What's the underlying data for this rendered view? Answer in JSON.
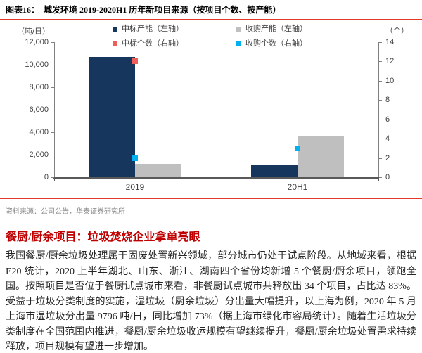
{
  "figure": {
    "label": "图表16：",
    "title": "城发环境 2019-2020H1 历年新项目来源（按项目个数、按产能）"
  },
  "chart_data": {
    "type": "bar",
    "categories": [
      "2019",
      "20H1"
    ],
    "left_axis": {
      "label": "（吨/日）",
      "min": 0,
      "max": 12000,
      "ticks": [
        "0",
        "2,000",
        "4,000",
        "6,000",
        "8,000",
        "10,000",
        "12,000"
      ]
    },
    "right_axis": {
      "label": "（个）",
      "min": 0,
      "max": 14,
      "ticks": [
        "0",
        "2",
        "4",
        "6",
        "8",
        "10",
        "12",
        "14"
      ]
    },
    "series": [
      {
        "name": "中标产能（左轴）",
        "kind": "bar",
        "axis": "left",
        "color": "#17365d",
        "values": [
          10700,
          1100
        ]
      },
      {
        "name": "收购产能（左轴）",
        "kind": "bar",
        "axis": "left",
        "color": "#bfbfbf",
        "values": [
          1200,
          3600
        ]
      },
      {
        "name": "中标个数（右轴）",
        "kind": "point",
        "axis": "right",
        "color": "#ee5f59",
        "values": [
          12,
          null
        ]
      },
      {
        "name": "收购个数（右轴）",
        "kind": "point",
        "axis": "right",
        "color": "#00b0f0",
        "values": [
          2,
          3
        ]
      }
    ],
    "legend_position": "top",
    "grid": false
  },
  "source": "资料来源：公司公告，华泰证券研究所",
  "section": {
    "heading": "餐厨/厨余项目：垃圾焚烧企业拿单亮眼",
    "paragraph": "我国餐厨/厨余垃圾处理属于固废处置新兴领域，部分城市仍处于试点阶段。从地域来看，根据 E20 统计，2020 上半年湖北、山东、浙江、湖南四个省份均新增 5 个餐厨/厨余项目，领跑全国。按照项目是否位于餐厨试点城市来看，非餐厨试点城市共释放出 34 个项目，占比达 83%。受益于垃圾分类制度的实施，湿垃圾（厨余垃圾）分出量大幅提升，以上海为例，2020 年 5 月上海市湿垃圾分出量 9796 吨/日，同比增加 73%（据上海市绿化市容局统计）。随着生活垃圾分类制度在全国范围内推进，餐厨/厨余垃圾收运规模有望继续提升，餐厨/厨余垃圾处置需求持续释放，项目规模有望进一步增加。"
  },
  "colors": {
    "divider_red": "#e0392b",
    "heading_red": "#c00000",
    "axis_line": "#808080",
    "baseline": "#595959"
  }
}
